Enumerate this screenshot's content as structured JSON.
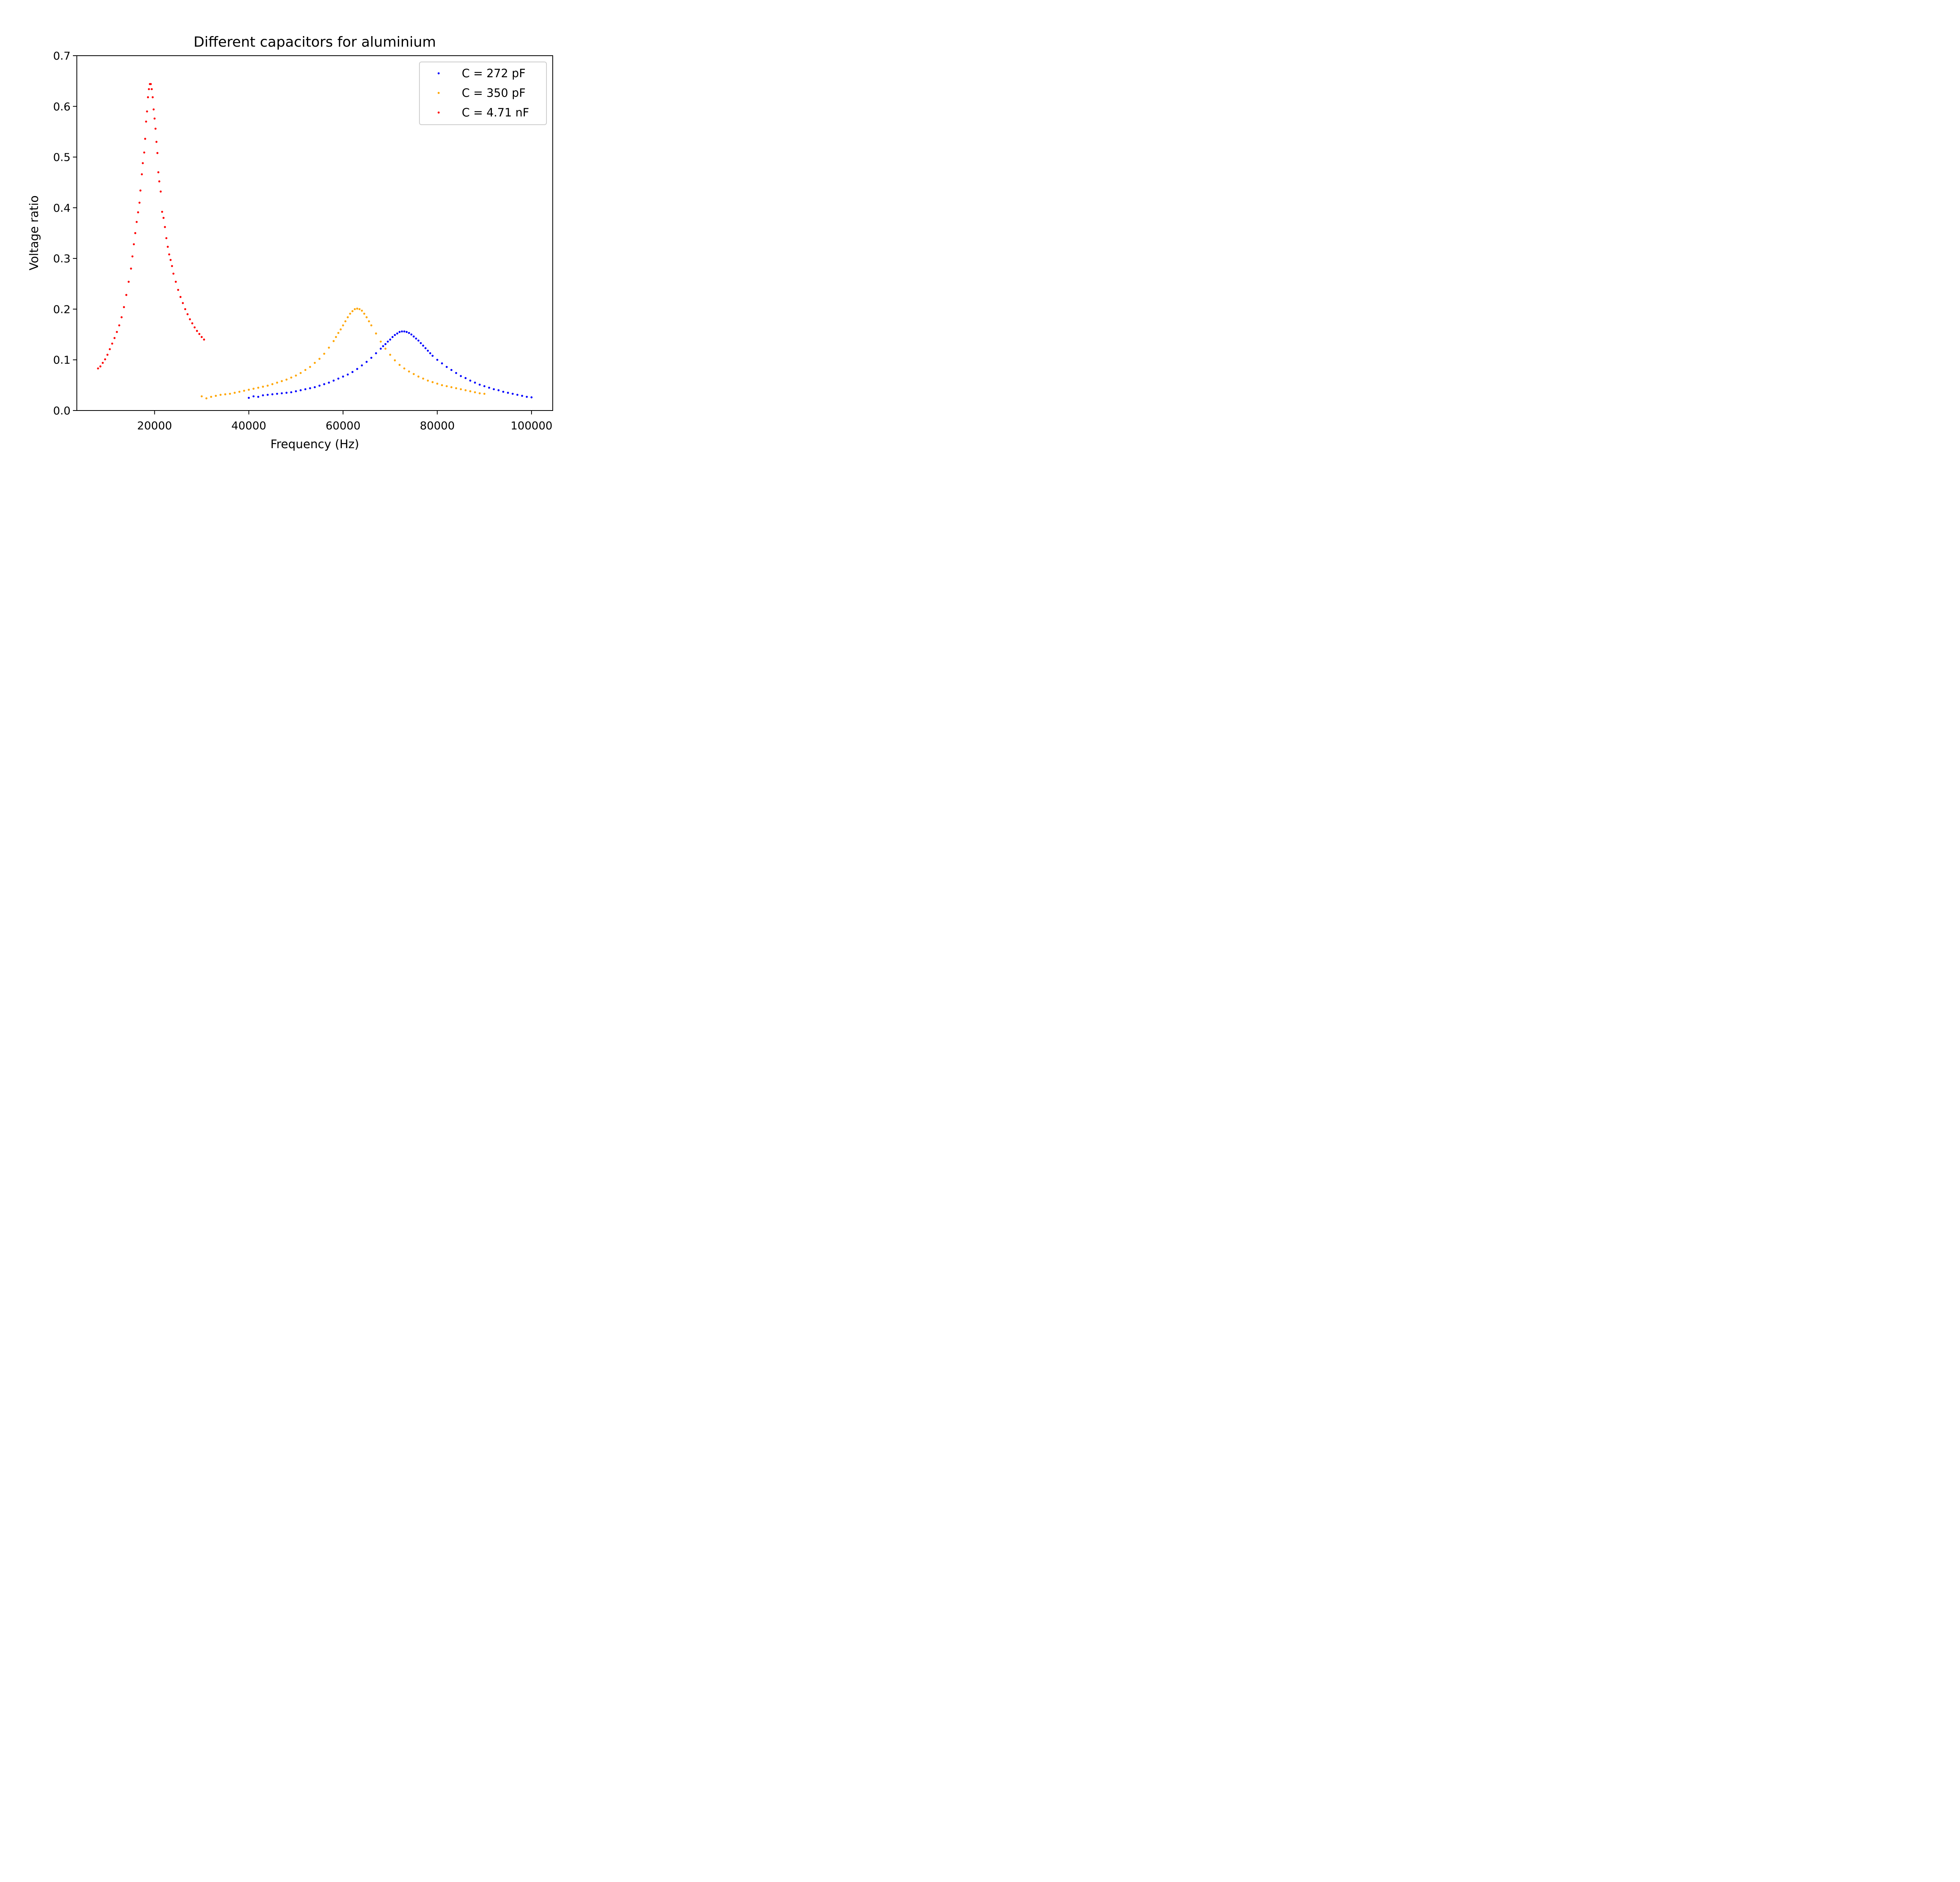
{
  "chart_data": {
    "type": "scatter",
    "title": "Different capacitors for aluminium",
    "xlabel": "Frequency (Hz)",
    "ylabel": "Voltage ratio",
    "xlim": [
      3500,
      104500
    ],
    "ylim": [
      0,
      0.7
    ],
    "xticks": [
      20000,
      40000,
      60000,
      80000,
      100000
    ],
    "yticks": [
      0.0,
      0.1,
      0.2,
      0.3,
      0.4,
      0.5,
      0.6,
      0.7
    ],
    "xtick_labels": [
      "20000",
      "40000",
      "60000",
      "80000",
      "100000"
    ],
    "ytick_labels": [
      "0.0",
      "0.1",
      "0.2",
      "0.3",
      "0.4",
      "0.5",
      "0.6",
      "0.7"
    ],
    "grid": false,
    "legend_position": "top-right",
    "series": [
      {
        "name": "C = 272 pF",
        "color": "#0000ff",
        "points": [
          [
            40000,
            0.025
          ],
          [
            41000,
            0.028
          ],
          [
            42000,
            0.027
          ],
          [
            43000,
            0.03
          ],
          [
            44000,
            0.031
          ],
          [
            45000,
            0.032
          ],
          [
            46000,
            0.033
          ],
          [
            47000,
            0.034
          ],
          [
            48000,
            0.035
          ],
          [
            49000,
            0.036
          ],
          [
            50000,
            0.038
          ],
          [
            51000,
            0.04
          ],
          [
            52000,
            0.042
          ],
          [
            53000,
            0.044
          ],
          [
            54000,
            0.046
          ],
          [
            55000,
            0.049
          ],
          [
            56000,
            0.052
          ],
          [
            57000,
            0.055
          ],
          [
            58000,
            0.059
          ],
          [
            59000,
            0.063
          ],
          [
            60000,
            0.067
          ],
          [
            61000,
            0.071
          ],
          [
            62000,
            0.076
          ],
          [
            63000,
            0.082
          ],
          [
            64000,
            0.089
          ],
          [
            65000,
            0.096
          ],
          [
            66000,
            0.104
          ],
          [
            67000,
            0.113
          ],
          [
            68000,
            0.122
          ],
          [
            68500,
            0.127
          ],
          [
            69000,
            0.131
          ],
          [
            69500,
            0.136
          ],
          [
            70000,
            0.14
          ],
          [
            70500,
            0.145
          ],
          [
            71000,
            0.149
          ],
          [
            71500,
            0.152
          ],
          [
            72000,
            0.155
          ],
          [
            72500,
            0.156
          ],
          [
            73000,
            0.156
          ],
          [
            73500,
            0.155
          ],
          [
            74000,
            0.153
          ],
          [
            74500,
            0.15
          ],
          [
            75000,
            0.146
          ],
          [
            75500,
            0.142
          ],
          [
            76000,
            0.138
          ],
          [
            76500,
            0.133
          ],
          [
            77000,
            0.128
          ],
          [
            77500,
            0.123
          ],
          [
            78000,
            0.118
          ],
          [
            78500,
            0.113
          ],
          [
            79000,
            0.108
          ],
          [
            80000,
            0.1
          ],
          [
            81000,
            0.093
          ],
          [
            82000,
            0.086
          ],
          [
            83000,
            0.08
          ],
          [
            84000,
            0.074
          ],
          [
            85000,
            0.068
          ],
          [
            86000,
            0.064
          ],
          [
            87000,
            0.059
          ],
          [
            88000,
            0.055
          ],
          [
            89000,
            0.051
          ],
          [
            90000,
            0.048
          ],
          [
            91000,
            0.045
          ],
          [
            92000,
            0.042
          ],
          [
            93000,
            0.04
          ],
          [
            94000,
            0.037
          ],
          [
            95000,
            0.035
          ],
          [
            96000,
            0.033
          ],
          [
            97000,
            0.031
          ],
          [
            98000,
            0.029
          ],
          [
            99000,
            0.027
          ],
          [
            100000,
            0.026
          ]
        ]
      },
      {
        "name": "C = 350 pF",
        "color": "#ffa500",
        "points": [
          [
            30000,
            0.028
          ],
          [
            31000,
            0.024
          ],
          [
            32000,
            0.027
          ],
          [
            33000,
            0.029
          ],
          [
            34000,
            0.031
          ],
          [
            35000,
            0.032
          ],
          [
            36000,
            0.033
          ],
          [
            37000,
            0.035
          ],
          [
            38000,
            0.037
          ],
          [
            39000,
            0.039
          ],
          [
            40000,
            0.041
          ],
          [
            41000,
            0.043
          ],
          [
            42000,
            0.045
          ],
          [
            43000,
            0.047
          ],
          [
            44000,
            0.049
          ],
          [
            45000,
            0.052
          ],
          [
            46000,
            0.055
          ],
          [
            47000,
            0.058
          ],
          [
            48000,
            0.061
          ],
          [
            49000,
            0.065
          ],
          [
            50000,
            0.069
          ],
          [
            51000,
            0.074
          ],
          [
            52000,
            0.08
          ],
          [
            53000,
            0.086
          ],
          [
            54000,
            0.094
          ],
          [
            55000,
            0.102
          ],
          [
            56000,
            0.112
          ],
          [
            57000,
            0.124
          ],
          [
            58000,
            0.137
          ],
          [
            58500,
            0.145
          ],
          [
            59000,
            0.153
          ],
          [
            59500,
            0.16
          ],
          [
            60000,
            0.168
          ],
          [
            60500,
            0.176
          ],
          [
            61000,
            0.184
          ],
          [
            61500,
            0.191
          ],
          [
            62000,
            0.196
          ],
          [
            62500,
            0.2
          ],
          [
            63000,
            0.201
          ],
          [
            63500,
            0.2
          ],
          [
            64000,
            0.197
          ],
          [
            64500,
            0.191
          ],
          [
            65000,
            0.184
          ],
          [
            65500,
            0.176
          ],
          [
            66000,
            0.168
          ],
          [
            67000,
            0.152
          ],
          [
            68000,
            0.136
          ],
          [
            69000,
            0.122
          ],
          [
            70000,
            0.11
          ],
          [
            71000,
            0.099
          ],
          [
            72000,
            0.09
          ],
          [
            73000,
            0.083
          ],
          [
            74000,
            0.077
          ],
          [
            75000,
            0.072
          ],
          [
            76000,
            0.067
          ],
          [
            77000,
            0.063
          ],
          [
            78000,
            0.059
          ],
          [
            79000,
            0.056
          ],
          [
            80000,
            0.053
          ],
          [
            81000,
            0.05
          ],
          [
            82000,
            0.048
          ],
          [
            83000,
            0.046
          ],
          [
            84000,
            0.044
          ],
          [
            85000,
            0.042
          ],
          [
            86000,
            0.04
          ],
          [
            87000,
            0.038
          ],
          [
            88000,
            0.036
          ],
          [
            89000,
            0.034
          ],
          [
            90000,
            0.033
          ]
        ]
      },
      {
        "name": "C = 4.71 nF",
        "color": "#ff0000",
        "points": [
          [
            8000,
            0.083
          ],
          [
            8500,
            0.087
          ],
          [
            9000,
            0.094
          ],
          [
            9500,
            0.101
          ],
          [
            10000,
            0.11
          ],
          [
            10500,
            0.121
          ],
          [
            11000,
            0.132
          ],
          [
            11500,
            0.143
          ],
          [
            12000,
            0.155
          ],
          [
            12500,
            0.168
          ],
          [
            13000,
            0.184
          ],
          [
            13500,
            0.204
          ],
          [
            14000,
            0.228
          ],
          [
            14500,
            0.254
          ],
          [
            15000,
            0.28
          ],
          [
            15300,
            0.304
          ],
          [
            15600,
            0.328
          ],
          [
            15900,
            0.35
          ],
          [
            16200,
            0.372
          ],
          [
            16500,
            0.391
          ],
          [
            16800,
            0.41
          ],
          [
            17000,
            0.434
          ],
          [
            17300,
            0.466
          ],
          [
            17500,
            0.488
          ],
          [
            17800,
            0.509
          ],
          [
            18000,
            0.536
          ],
          [
            18200,
            0.57
          ],
          [
            18400,
            0.59
          ],
          [
            18600,
            0.618
          ],
          [
            18800,
            0.634
          ],
          [
            19000,
            0.644
          ],
          [
            19200,
            0.644
          ],
          [
            19400,
            0.634
          ],
          [
            19600,
            0.618
          ],
          [
            19800,
            0.594
          ],
          [
            20000,
            0.576
          ],
          [
            20200,
            0.556
          ],
          [
            20400,
            0.53
          ],
          [
            20600,
            0.508
          ],
          [
            20800,
            0.47
          ],
          [
            21000,
            0.452
          ],
          [
            21300,
            0.432
          ],
          [
            21600,
            0.392
          ],
          [
            21900,
            0.38
          ],
          [
            22200,
            0.362
          ],
          [
            22500,
            0.34
          ],
          [
            22800,
            0.323
          ],
          [
            23100,
            0.308
          ],
          [
            23400,
            0.297
          ],
          [
            23700,
            0.285
          ],
          [
            24000,
            0.27
          ],
          [
            24500,
            0.254
          ],
          [
            25000,
            0.238
          ],
          [
            25500,
            0.224
          ],
          [
            26000,
            0.212
          ],
          [
            26500,
            0.2
          ],
          [
            27000,
            0.19
          ],
          [
            27500,
            0.18
          ],
          [
            28000,
            0.172
          ],
          [
            28500,
            0.164
          ],
          [
            29000,
            0.157
          ],
          [
            29500,
            0.151
          ],
          [
            30000,
            0.145
          ],
          [
            30500,
            0.14
          ]
        ]
      }
    ]
  }
}
